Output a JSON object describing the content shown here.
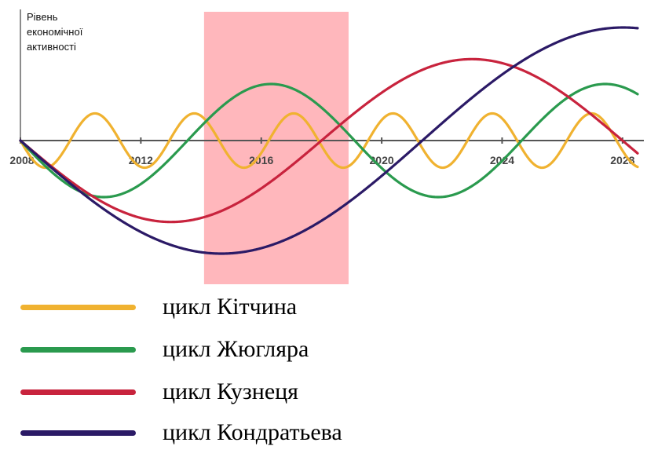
{
  "chart_data": {
    "type": "line",
    "ylabel_lines": [
      "Рівень",
      "економічної",
      "активності"
    ],
    "xlabel": "",
    "xlim": [
      2008,
      2028.5
    ],
    "ylim": [
      -1,
      1
    ],
    "x_ticks": [
      2008,
      2012,
      2016,
      2020,
      2024,
      2028
    ],
    "x_tick_labels": [
      "2008",
      "2012",
      "2016",
      "2020",
      "2024",
      "2028"
    ],
    "highlight_band": {
      "x_start": 2014.1,
      "x_end": 2018.9,
      "color": "#ffb7bc"
    },
    "grid": false,
    "legend_position": "bottom",
    "series": [
      {
        "name": "цикл Кітчина",
        "color": "#f0b230",
        "x": [
          2008,
          2008.5,
          2009,
          2009.5,
          2010,
          2010.5,
          2011,
          2011.5,
          2012,
          2012.5,
          2013,
          2013.5,
          2014,
          2014.5,
          2015,
          2015.5,
          2016,
          2016.5,
          2017,
          2017.5,
          2018,
          2018.5,
          2019,
          2019.5,
          2020,
          2020.5,
          2021,
          2021.5,
          2022,
          2022.5,
          2023,
          2023.5,
          2024,
          2024.5,
          2025,
          2025.5,
          2026,
          2026.5,
          2027,
          2027.5,
          2028,
          2028.3
        ],
        "y": [
          0,
          -0.24,
          -0.24,
          0,
          0.24,
          0.24,
          0,
          -0.24,
          -0.24,
          0,
          0.24,
          0.24,
          0,
          -0.24,
          -0.24,
          0,
          0.24,
          0.24,
          0,
          -0.24,
          -0.24,
          0,
          0.24,
          0.24,
          0,
          -0.24,
          -0.24,
          0,
          0.24,
          0.24,
          0,
          -0.24,
          -0.24,
          0,
          0.24,
          0.24,
          0,
          -0.24,
          -0.24,
          0,
          0.24,
          0.16
        ],
        "x_start": 2008,
        "amplitude": 0.24,
        "period_years": 3.3,
        "phase_sign": -1
      },
      {
        "name": "цикл Жюгляра",
        "color": "#2a9a4e",
        "x_start": 2008,
        "amplitude": 0.5,
        "period_years": 11.1,
        "phase_sign": -1,
        "x": [
          2008,
          2010.8,
          2013.6,
          2016.3,
          2019.1,
          2021.8,
          2024.6,
          2027.4,
          2028.5
        ],
        "y": [
          0,
          -0.5,
          0,
          0.5,
          0,
          -0.5,
          0,
          0.5,
          0.35
        ]
      },
      {
        "name": "цикл Кузнеця",
        "color": "#c8233d",
        "x_start": 2008,
        "amplitude": 0.72,
        "period_years": 20,
        "phase_sign": -1,
        "x": [
          2008,
          2013,
          2018,
          2023,
          2028,
          2028.5
        ],
        "y": [
          0,
          -0.72,
          0,
          0.72,
          0,
          -0.11
        ]
      },
      {
        "name": "цикл Кондратьева",
        "color": "#2b1a66",
        "x_start": 2008,
        "amplitude": 1.0,
        "period_years": 26.7,
        "phase_sign": -1,
        "x": [
          2008,
          2014.7,
          2021.3,
          2028,
          2028.5
        ],
        "y": [
          0,
          -1.0,
          0,
          1.0,
          1.0
        ]
      }
    ]
  }
}
